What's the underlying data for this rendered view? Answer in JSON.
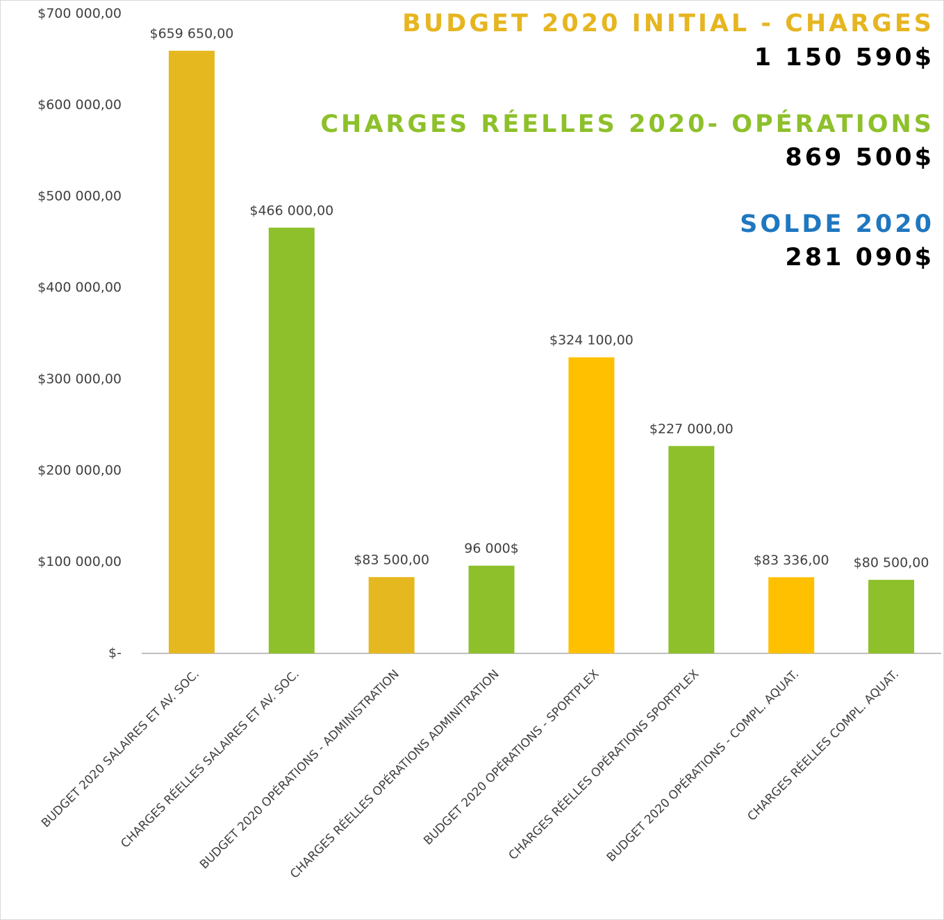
{
  "chart_data": {
    "type": "bar",
    "categories": [
      "BUDGET 2020 SALAIRES ET AV. SOC.",
      "CHARGES RÉELLES SALAIRES ET AV. SOC.",
      "BUDGET 2020 OPÉRATIONS - ADMINISTRATION",
      "CHARGES RÉELLES OPÉRATIONS ADMINITRATION",
      "BUDGET 2020  OPÉRATIONS - SPORTPLEX",
      "CHARGES RÉELLES OPÉRATIONS SPORTPLEX",
      "BUDGET 2020 OPÉRATIONS - COMPL. AQUAT.",
      "CHARGES RÉELLES COMPL. AQUAT."
    ],
    "values": [
      659650,
      466000,
      83500,
      96000,
      324100,
      227000,
      83336,
      80500
    ],
    "value_labels": [
      "$659 650,00",
      "$466 000,00",
      "$83 500,00",
      "96 000$",
      "$324 100,00",
      "$227 000,00",
      "$83 336,00",
      "$80 500,00"
    ],
    "colors": [
      "#E6B820",
      "#8DC02A",
      "#E6B820",
      "#8DC02A",
      "#FFC000",
      "#8DC02A",
      "#FFC000",
      "#8DC02A"
    ],
    "ylim": [
      0,
      700000
    ],
    "yticks": [
      {
        "value": 0,
        "label": "$-"
      },
      {
        "value": 100000,
        "label": "$100 000,00"
      },
      {
        "value": 200000,
        "label": "$200 000,00"
      },
      {
        "value": 300000,
        "label": "$300 000,00"
      },
      {
        "value": 400000,
        "label": "$400 000,00"
      },
      {
        "value": 500000,
        "label": "$500 000,00"
      },
      {
        "value": 600000,
        "label": "$600 000,00"
      },
      {
        "value": 700000,
        "label": "$700 000,00"
      }
    ],
    "grid": false,
    "annotations": [
      {
        "text": "BUDGET 2020 INITIAL - CHARGES",
        "color": "#E6B520"
      },
      {
        "text": "1 150 590$",
        "color": "#000000"
      },
      {
        "text": "CHARGES RÉELLES 2020- OPÉRATIONS",
        "color": "#8DC02A"
      },
      {
        "text": "869 500$",
        "color": "#000000"
      },
      {
        "text": "SOLDE 2020",
        "color": "#1F77C0"
      },
      {
        "text": "281 090$",
        "color": "#000000"
      }
    ]
  }
}
